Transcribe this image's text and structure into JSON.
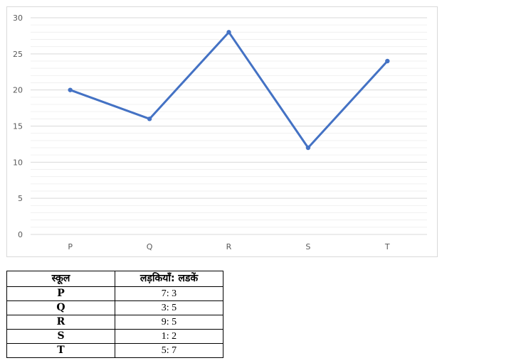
{
  "chart_data": {
    "type": "line",
    "categories": [
      "P",
      "Q",
      "R",
      "S",
      "T"
    ],
    "series": [
      {
        "values": [
          20,
          16,
          28,
          12,
          24
        ],
        "color": "#4472c4"
      }
    ],
    "title": "",
    "xlabel": "",
    "ylabel": "",
    "ylim": [
      0,
      30
    ],
    "yticks": [
      0,
      5,
      10,
      15,
      20,
      25,
      30
    ],
    "grid": true,
    "legend": "none"
  },
  "table": {
    "headers": [
      "स्कूल",
      "लड़कियाँ: लडकें"
    ],
    "rows": [
      {
        "school": "P",
        "ratio": "7: 3"
      },
      {
        "school": "Q",
        "ratio": "3: 5"
      },
      {
        "school": "R",
        "ratio": "9: 5"
      },
      {
        "school": "S",
        "ratio": "1: 2"
      },
      {
        "school": "T",
        "ratio": "5: 7"
      }
    ]
  }
}
